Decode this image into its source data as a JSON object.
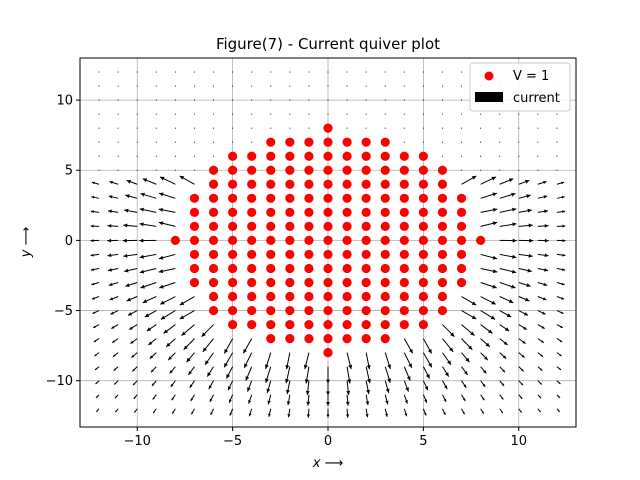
{
  "chart_data": {
    "type": "scatter",
    "title": "Figure(7) - Current quiver plot",
    "xlabel": "x ⟶",
    "ylabel": "y ⟶",
    "xlim": [
      -13,
      13
    ],
    "ylim": [
      -13.3,
      13
    ],
    "x_ticks": [
      -10,
      -5,
      0,
      5,
      10
    ],
    "x_tick_labels": [
      "−10",
      "−5",
      "0",
      "5",
      "10"
    ],
    "y_ticks": [
      -10,
      -5,
      0,
      5,
      10
    ],
    "y_tick_labels": [
      "−10",
      "−5",
      "0",
      "5",
      "10"
    ],
    "grid": true,
    "legend": {
      "placement": "upper right",
      "entries": [
        {
          "label": "V = 1",
          "kind": "marker",
          "color": "#ff0000"
        },
        {
          "label": "current",
          "kind": "quiver",
          "color": "#000000"
        }
      ]
    },
    "point_series": {
      "name": "V = 1",
      "color": "#ff0000",
      "columns": [
        {
          "x": -8,
          "y_min": 0,
          "y_max": 0
        },
        {
          "x": -7,
          "y_min": -3,
          "y_max": 3
        },
        {
          "x": -6,
          "y_min": -5,
          "y_max": 5
        },
        {
          "x": -5,
          "y_min": -6,
          "y_max": 6
        },
        {
          "x": -4,
          "y_min": -6,
          "y_max": 6
        },
        {
          "x": -3,
          "y_min": -7,
          "y_max": 7
        },
        {
          "x": -2,
          "y_min": -7,
          "y_max": 7
        },
        {
          "x": -1,
          "y_min": -7,
          "y_max": 7
        },
        {
          "x": 0,
          "y_min": -8,
          "y_max": 8
        },
        {
          "x": 1,
          "y_min": -7,
          "y_max": 7
        },
        {
          "x": 2,
          "y_min": -7,
          "y_max": 7
        },
        {
          "x": 3,
          "y_min": -7,
          "y_max": 7
        },
        {
          "x": 4,
          "y_min": -6,
          "y_max": 6
        },
        {
          "x": 5,
          "y_min": -6,
          "y_max": 6
        },
        {
          "x": 6,
          "y_min": -5,
          "y_max": 5
        },
        {
          "x": 7,
          "y_min": -3,
          "y_max": 3
        },
        {
          "x": 8,
          "y_min": 0,
          "y_max": 0
        }
      ]
    },
    "quiver_series": {
      "name": "current",
      "color": "#000000",
      "grid_x_range": [
        -12,
        12
      ],
      "grid_y_range": [
        -12,
        12
      ],
      "grid_step": 1
    }
  }
}
